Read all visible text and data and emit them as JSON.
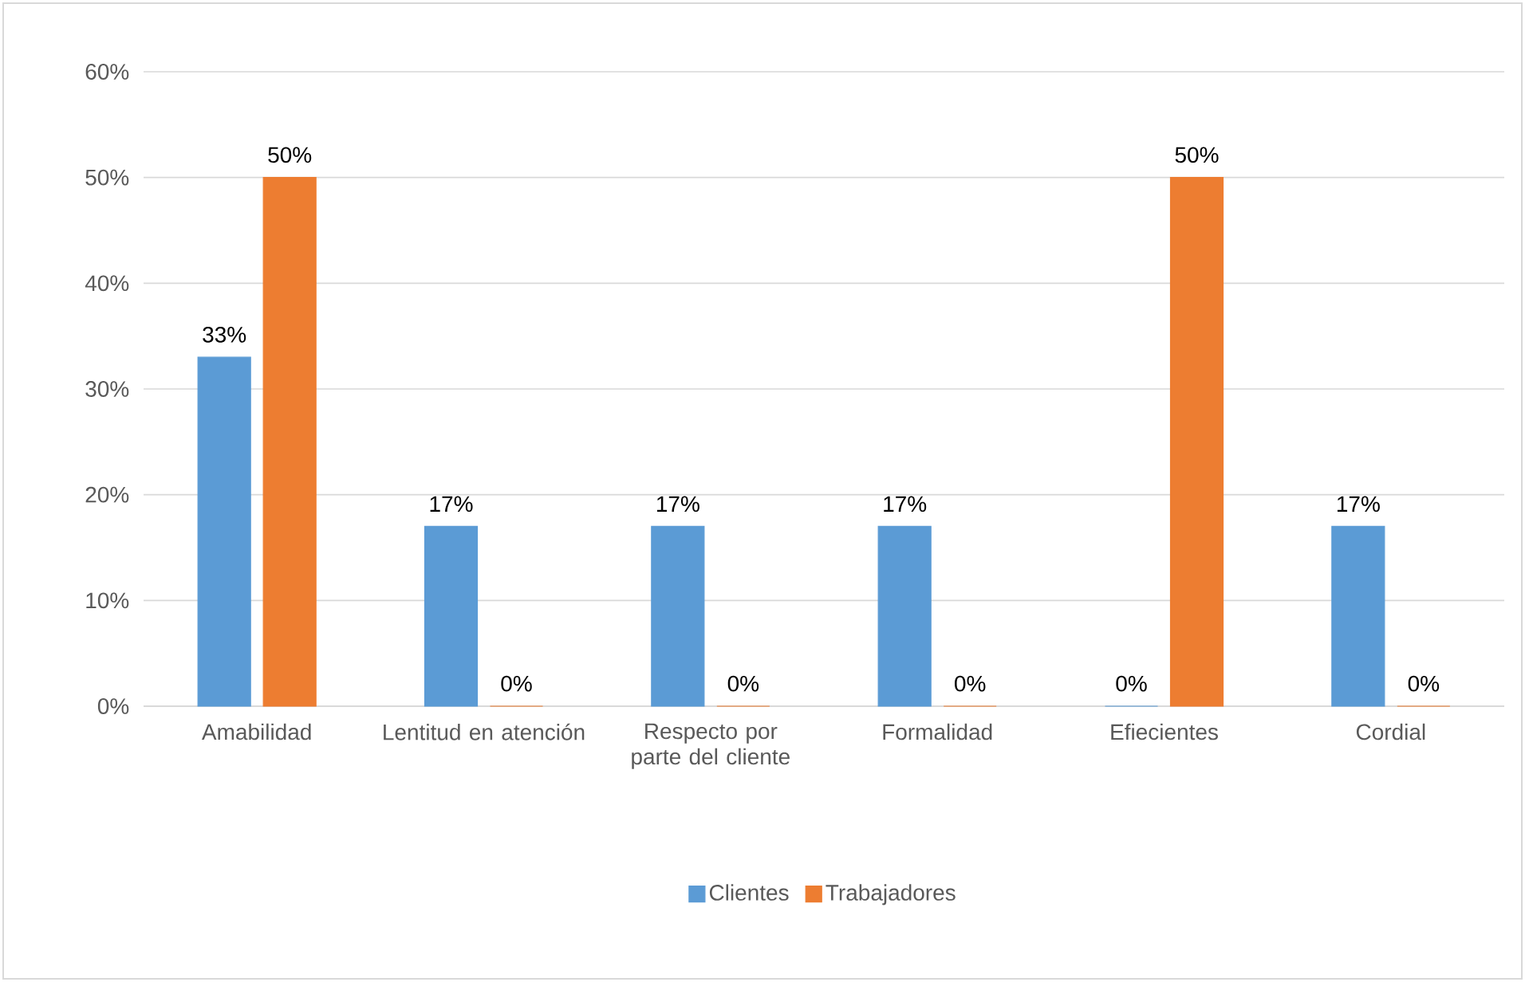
{
  "chart_data": {
    "type": "bar",
    "categories": [
      "Amabilidad",
      "Lentitud en atención",
      "Respecto por parte del cliente",
      "Formalidad",
      "Efiecientes",
      "Cordial"
    ],
    "series": [
      {
        "name": "Clientes",
        "color": "#5b9bd5",
        "values": [
          33,
          17,
          17,
          17,
          0,
          17
        ],
        "value_labels": [
          "33%",
          "17%",
          "17%",
          "17%",
          "0%",
          "17%"
        ]
      },
      {
        "name": "Trabajadores",
        "color": "#ed7d31",
        "values": [
          50,
          0,
          0,
          0,
          50,
          0
        ],
        "value_labels": [
          "50%",
          "0%",
          "0%",
          "0%",
          "50%",
          "0%"
        ]
      }
    ],
    "ylim": [
      0,
      60
    ],
    "yticks": [
      {
        "value": 0,
        "label": "0%"
      },
      {
        "value": 10,
        "label": "10%"
      },
      {
        "value": 20,
        "label": "20%"
      },
      {
        "value": 30,
        "label": "30%"
      },
      {
        "value": 40,
        "label": "40%"
      },
      {
        "value": 50,
        "label": "50%"
      },
      {
        "value": 60,
        "label": "60%"
      }
    ],
    "grid": "y",
    "legend": "bottom"
  }
}
